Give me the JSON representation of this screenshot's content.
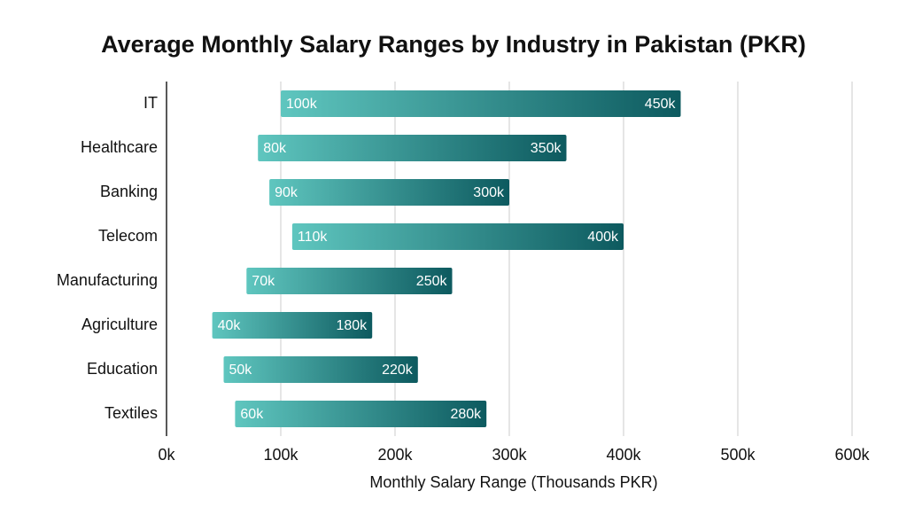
{
  "chart_data": {
    "type": "range_bar",
    "title": "Average Monthly Salary Ranges by Industry in Pakistan (PKR)",
    "x_label": "Monthly Salary Range (Thousands PKR)",
    "categories": [
      "IT",
      "Healthcare",
      "Banking",
      "Telecom",
      "Manufacturing",
      "Agriculture",
      "Education",
      "Textiles"
    ],
    "starts": [
      100,
      80,
      90,
      110,
      70,
      40,
      50,
      60
    ],
    "start_labels": [
      "100k",
      "80k",
      "90k",
      "110k",
      "70k",
      "40k",
      "50k",
      "60k"
    ],
    "ends": [
      450,
      350,
      300,
      400,
      250,
      180,
      220,
      280
    ],
    "end_labels": [
      "450k",
      "350k",
      "300k",
      "400k",
      "250k",
      "180k",
      "220k",
      "280k"
    ],
    "xlim": [
      0,
      600
    ],
    "xticks": [
      {
        "value": 0,
        "label": "0k"
      },
      {
        "value": 100,
        "label": "100k"
      },
      {
        "value": 200,
        "label": "200k"
      },
      {
        "value": 300,
        "label": "300k"
      },
      {
        "value": 400,
        "label": "400k"
      },
      {
        "value": 500,
        "label": "500k"
      },
      {
        "value": 600,
        "label": "600k"
      }
    ],
    "grid": true,
    "color_start": "#5fc6bf",
    "color_end": "#0d5a5f"
  }
}
